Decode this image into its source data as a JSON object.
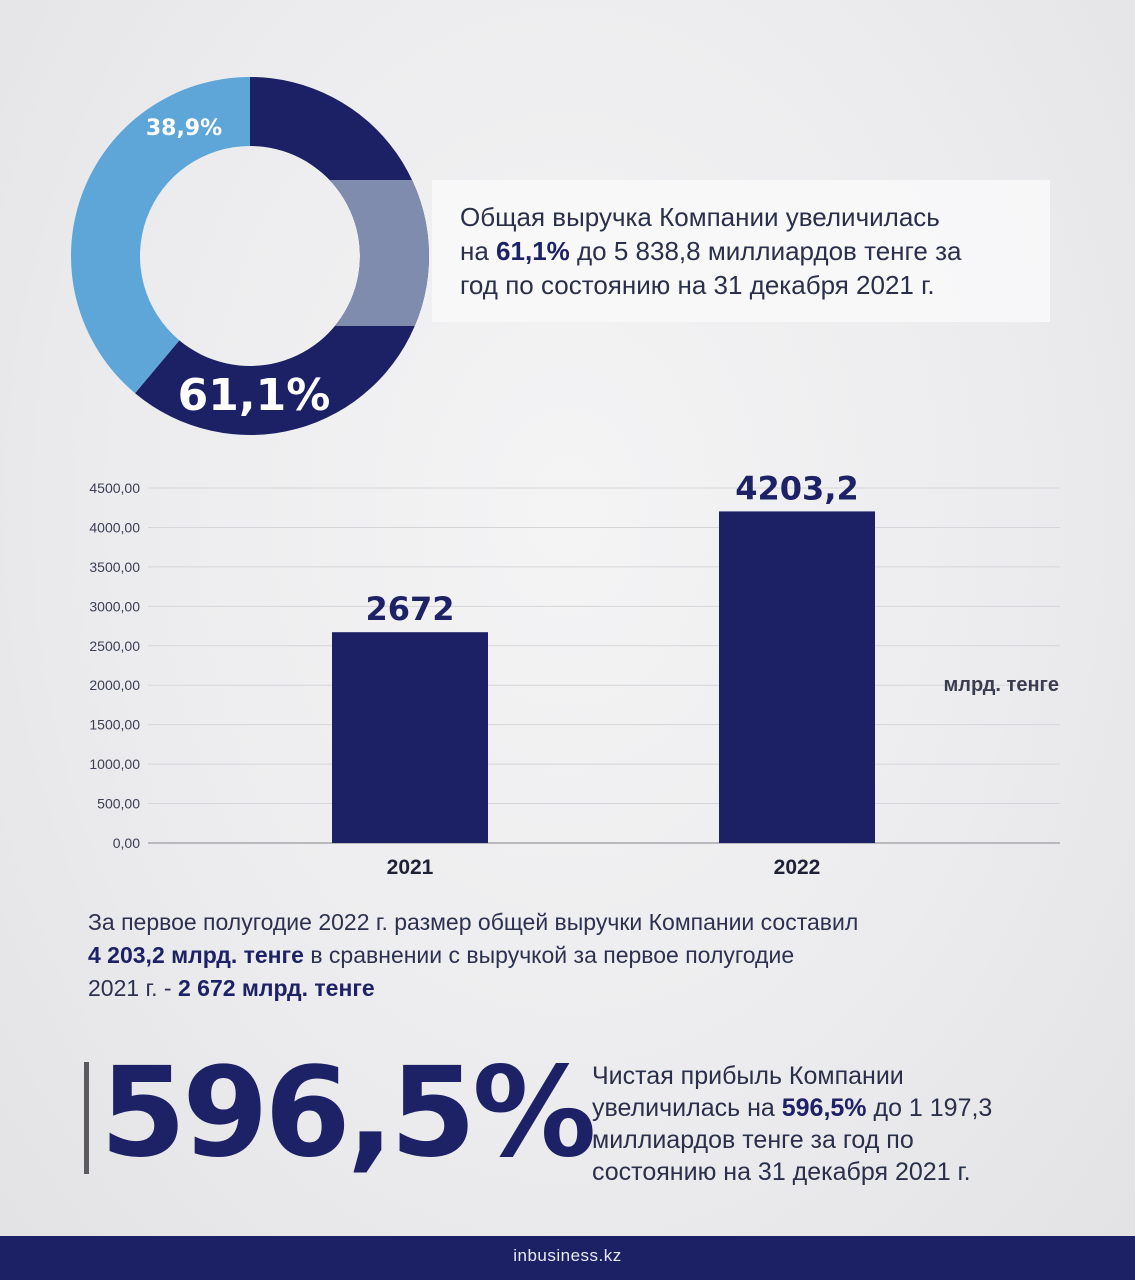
{
  "donut": {
    "segments": [
      {
        "label": "61,1%",
        "value": 61.1,
        "color": "#1c2064"
      },
      {
        "label": "38,9%",
        "value": 38.9,
        "color": "#5ea6d8"
      }
    ],
    "highlight_color": "#7f8cae"
  },
  "info": {
    "line1": "Общая выручка Компании увеличилась",
    "line2_prefix": "на ",
    "line2_bold": "61,1%",
    "line2_suffix": " до 5 838,8 миллиардов тенге за",
    "line3": "год по состоянию на 31 декабря 2021 г."
  },
  "chart_data": {
    "type": "bar",
    "categories": [
      "2021",
      "2022"
    ],
    "values": [
      2672,
      4203.2
    ],
    "value_labels": [
      "2672",
      "4203,2"
    ],
    "ytick_labels": [
      "0,00",
      "500,00",
      "1000,00",
      "1500,00",
      "2000,00",
      "2500,00",
      "3000,00",
      "3500,00",
      "4000,00",
      "4500,00"
    ],
    "ylim": [
      0,
      4500
    ],
    "unit": "млрд. тенге",
    "bar_color": "#1c2064",
    "grid": true
  },
  "description": {
    "line1": "За первое полугодие 2022 г. размер общей выручки Компании составил",
    "line2_bold": "4 203,2 млрд. тенге",
    "line2_rest": " в сравнении с выручкой за первое полугодие",
    "line3_prefix": "2021 г. - ",
    "line3_bold": "2 672 млрд. тенге"
  },
  "big_number": "596,5%",
  "profit": {
    "line1": "Чистая прибыль Компании",
    "line2_prefix": "увеличилась на ",
    "line2_bold": "596,5%",
    "line2_suffix": " до 1 197,3",
    "line3": "миллиардов тенге за год по",
    "line4": "состоянию на 31 декабря 2021 г."
  },
  "footer": {
    "brand": "inbusiness.kz"
  }
}
